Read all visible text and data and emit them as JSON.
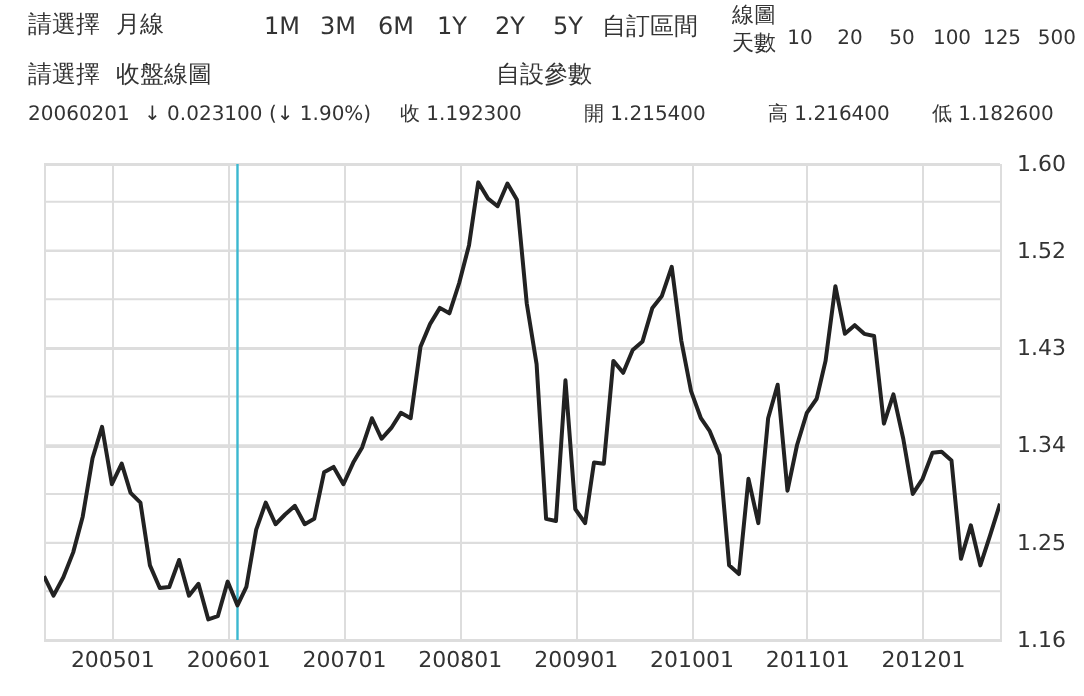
{
  "chart_data": {
    "type": "line",
    "x": [
      "2004-06",
      "2004-07",
      "2004-08",
      "2004-09",
      "2004-10",
      "2004-11",
      "2004-12",
      "2005-01",
      "2005-02",
      "2005-03",
      "2005-04",
      "2005-05",
      "2005-06",
      "2005-07",
      "2005-08",
      "2005-09",
      "2005-10",
      "2005-11",
      "2005-12",
      "2006-01",
      "2006-02",
      "2006-03",
      "2006-04",
      "2006-05",
      "2006-06",
      "2006-07",
      "2006-08",
      "2006-09",
      "2006-10",
      "2006-11",
      "2006-12",
      "2007-01",
      "2007-02",
      "2007-03",
      "2007-04",
      "2007-05",
      "2007-06",
      "2007-07",
      "2007-08",
      "2007-09",
      "2007-10",
      "2007-11",
      "2007-12",
      "2008-01",
      "2008-02",
      "2008-03",
      "2008-04",
      "2008-05",
      "2008-06",
      "2008-07",
      "2008-08",
      "2008-09",
      "2008-10",
      "2008-11",
      "2008-12",
      "2009-01",
      "2009-02",
      "2009-03",
      "2009-04",
      "2009-05",
      "2009-06",
      "2009-07",
      "2009-08",
      "2009-09",
      "2009-10",
      "2009-11",
      "2009-12",
      "2010-01",
      "2010-02",
      "2010-03",
      "2010-04",
      "2010-05",
      "2010-06",
      "2010-07",
      "2010-08",
      "2010-09",
      "2010-10",
      "2010-11",
      "2010-12",
      "2011-01",
      "2011-02",
      "2011-03",
      "2011-04",
      "2011-05",
      "2011-06",
      "2011-07",
      "2011-08",
      "2011-09",
      "2011-10",
      "2011-11",
      "2011-12",
      "2012-01",
      "2012-02",
      "2012-03",
      "2012-04",
      "2012-05",
      "2012-06",
      "2012-07",
      "2012-08",
      "2012-09"
    ],
    "series": [
      {
        "color": "#222222",
        "values": [
          1.219,
          1.201,
          1.218,
          1.241,
          1.274,
          1.328,
          1.357,
          1.304,
          1.323,
          1.296,
          1.287,
          1.229,
          1.208,
          1.209,
          1.234,
          1.201,
          1.212,
          1.179,
          1.182,
          1.214,
          1.192,
          1.209,
          1.262,
          1.287,
          1.267,
          1.276,
          1.284,
          1.267,
          1.272,
          1.315,
          1.32,
          1.304,
          1.324,
          1.338,
          1.365,
          1.346,
          1.356,
          1.37,
          1.365,
          1.431,
          1.452,
          1.467,
          1.462,
          1.49,
          1.525,
          1.583,
          1.568,
          1.561,
          1.582,
          1.567,
          1.471,
          1.415,
          1.272,
          1.27,
          1.4,
          1.281,
          1.268,
          1.324,
          1.323,
          1.418,
          1.407,
          1.428,
          1.436,
          1.467,
          1.478,
          1.505,
          1.437,
          1.39,
          1.365,
          1.353,
          1.331,
          1.229,
          1.221,
          1.309,
          1.268,
          1.365,
          1.396,
          1.298,
          1.34,
          1.37,
          1.383,
          1.418,
          1.487,
          1.443,
          1.451,
          1.443,
          1.441,
          1.36,
          1.387,
          1.346,
          1.295,
          1.309,
          1.333,
          1.334,
          1.326,
          1.235,
          1.266,
          1.229,
          1.257,
          1.286
        ]
      }
    ],
    "xlim": [
      "2004-06",
      "2012-09"
    ],
    "xticks": [
      {
        "value": "2005-01",
        "label": "200501"
      },
      {
        "value": "2006-01",
        "label": "200601"
      },
      {
        "value": "2007-01",
        "label": "200701"
      },
      {
        "value": "2008-01",
        "label": "200801"
      },
      {
        "value": "2009-01",
        "label": "200901"
      },
      {
        "value": "2010-01",
        "label": "201001"
      },
      {
        "value": "2011-01",
        "label": "201101"
      },
      {
        "value": "2012-01",
        "label": "201201"
      }
    ],
    "ylim": [
      1.16,
      1.6
    ],
    "yticks": [
      1.16,
      {
        "value": 1.205,
        "label": null
      },
      1.25,
      {
        "value": 1.295,
        "label": null
      },
      1.34,
      {
        "value": 1.385,
        "label": null
      },
      1.43,
      {
        "value": 1.475,
        "label": null
      },
      1.52,
      {
        "value": 1.565,
        "label": null
      },
      {
        "value": 1.6,
        "label": "1.60"
      }
    ],
    "grid": true,
    "ref_lines": [
      {
        "axis": "x",
        "value": "2006-02",
        "color": "#3bb8d0"
      }
    ],
    "annotations": [
      "請選擇",
      "月線",
      "1M",
      "3M",
      "6M",
      "1Y",
      "2Y",
      "5Y",
      "自訂區間",
      "線圖",
      "天數",
      "10",
      "20",
      "50",
      "100",
      "125",
      "500",
      "請選擇",
      "收盤線圖",
      "自設參數",
      "20060201",
      "↓ 0.023100 (↓ 1.90%)",
      "收 1.192300",
      "開 1.215400",
      "高 1.216400",
      "低 1.182600"
    ]
  }
}
